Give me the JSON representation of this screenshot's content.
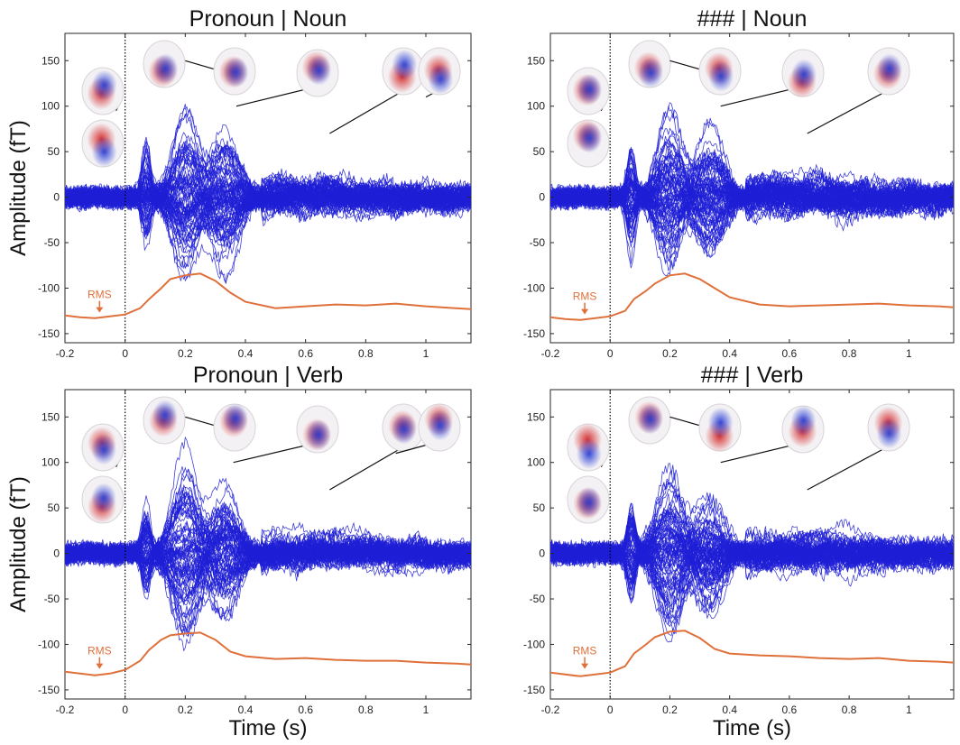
{
  "chart_data": [
    {
      "type": "line",
      "title": "Pronoun | Noun",
      "ylabel": "Amplitude (fT)",
      "xlabel": "",
      "xlim": [
        -0.2,
        1.15
      ],
      "ylim": [
        -160,
        180
      ],
      "xticks": [
        -0.2,
        0,
        0.2,
        0.4,
        0.6,
        0.8,
        1
      ],
      "yticks": [
        -150,
        -100,
        -50,
        0,
        50,
        100,
        150
      ],
      "xtick_labels": [
        "-0.2",
        "0",
        "0.2",
        "0.4",
        "0.6",
        "0.8",
        "1"
      ],
      "ytick_labels": [
        "-150",
        "-100",
        "-50",
        "0",
        "50",
        "100",
        "150"
      ],
      "onset_line_x": 0,
      "series": [
        {
          "name": "RMS",
          "color": "#e0703a",
          "x": [
            -0.2,
            -0.15,
            -0.1,
            -0.05,
            0,
            0.05,
            0.08,
            0.12,
            0.15,
            0.2,
            0.25,
            0.3,
            0.35,
            0.4,
            0.5,
            0.6,
            0.7,
            0.8,
            0.9,
            1.0,
            1.1,
            1.15
          ],
          "y": [
            -130,
            -132,
            -133,
            -131,
            -129,
            -122,
            -112,
            -100,
            -90,
            -86,
            -84,
            -92,
            -105,
            -115,
            -122,
            -120,
            -118,
            -119,
            -117,
            -120,
            -122,
            -123
          ]
        }
      ],
      "annotations": [
        {
          "text": "RMS",
          "x": -0.085,
          "y": -115
        }
      ],
      "topomap_times": [
        -0.03,
        -0.03,
        0.12,
        0.2,
        0.37,
        0.68,
        1.0
      ]
    },
    {
      "type": "line",
      "title": "### | Noun",
      "ylabel": "",
      "xlabel": "",
      "xlim": [
        -0.2,
        1.15
      ],
      "ylim": [
        -160,
        180
      ],
      "xticks": [
        -0.2,
        0,
        0.2,
        0.4,
        0.6,
        0.8,
        1
      ],
      "yticks": [
        -150,
        -100,
        -50,
        0,
        50,
        100,
        150
      ],
      "xtick_labels": [
        "-0.2",
        "0",
        "0.2",
        "0.4",
        "0.6",
        "0.8",
        "1"
      ],
      "ytick_labels": [
        "-150",
        "-100",
        "-50",
        "0",
        "50",
        "100",
        "150"
      ],
      "onset_line_x": 0,
      "series": [
        {
          "name": "RMS",
          "color": "#e0703a",
          "x": [
            -0.2,
            -0.15,
            -0.1,
            -0.05,
            0,
            0.05,
            0.08,
            0.12,
            0.15,
            0.2,
            0.25,
            0.3,
            0.35,
            0.4,
            0.5,
            0.6,
            0.7,
            0.8,
            0.9,
            1.0,
            1.1,
            1.15
          ],
          "y": [
            -132,
            -134,
            -135,
            -133,
            -131,
            -125,
            -112,
            -103,
            -95,
            -86,
            -84,
            -90,
            -100,
            -110,
            -118,
            -120,
            -119,
            -118,
            -117,
            -119,
            -120,
            -121
          ]
        }
      ],
      "annotations": [
        {
          "text": "RMS",
          "x": -0.085,
          "y": -117
        }
      ],
      "topomap_times": [
        -0.03,
        -0.03,
        0.12,
        0.2,
        0.37,
        0.66,
        0.94
      ]
    },
    {
      "type": "line",
      "title": "Pronoun | Verb",
      "ylabel": "Amplitude (fT)",
      "xlabel": "Time (s)",
      "xlim": [
        -0.2,
        1.15
      ],
      "ylim": [
        -160,
        180
      ],
      "xticks": [
        -0.2,
        0,
        0.2,
        0.4,
        0.6,
        0.8,
        1
      ],
      "yticks": [
        -150,
        -100,
        -50,
        0,
        50,
        100,
        150
      ],
      "xtick_labels": [
        "-0.2",
        "0",
        "0.2",
        "0.4",
        "0.6",
        "0.8",
        "1"
      ],
      "ytick_labels": [
        "-150",
        "-100",
        "-50",
        "0",
        "50",
        "100",
        "150"
      ],
      "onset_line_x": 0,
      "series": [
        {
          "name": "RMS",
          "color": "#e0703a",
          "x": [
            -0.2,
            -0.15,
            -0.1,
            -0.05,
            0,
            0.05,
            0.08,
            0.12,
            0.15,
            0.2,
            0.25,
            0.3,
            0.35,
            0.4,
            0.5,
            0.6,
            0.7,
            0.8,
            0.9,
            1.0,
            1.1,
            1.15
          ],
          "y": [
            -130,
            -132,
            -134,
            -132,
            -128,
            -118,
            -106,
            -95,
            -90,
            -88,
            -87,
            -95,
            -108,
            -113,
            -116,
            -115,
            -117,
            -118,
            -118,
            -120,
            -121,
            -122
          ]
        }
      ],
      "annotations": [
        {
          "text": "RMS",
          "x": -0.085,
          "y": -115
        }
      ],
      "topomap_times": [
        -0.03,
        -0.03,
        0.12,
        0.2,
        0.36,
        0.68,
        0.9
      ]
    },
    {
      "type": "line",
      "title": "### | Verb",
      "ylabel": "",
      "xlabel": "Time (s)",
      "xlim": [
        -0.2,
        1.15
      ],
      "ylim": [
        -160,
        180
      ],
      "xticks": [
        -0.2,
        0,
        0.2,
        0.4,
        0.6,
        0.8,
        1
      ],
      "yticks": [
        -150,
        -100,
        -50,
        0,
        50,
        100,
        150
      ],
      "xtick_labels": [
        "-0.2",
        "0",
        "0.2",
        "0.4",
        "0.6",
        "0.8",
        "1"
      ],
      "ytick_labels": [
        "-150",
        "-100",
        "-50",
        "0",
        "50",
        "100",
        "150"
      ],
      "onset_line_x": 0,
      "series": [
        {
          "name": "RMS",
          "color": "#e0703a",
          "x": [
            -0.2,
            -0.15,
            -0.1,
            -0.05,
            0,
            0.05,
            0.08,
            0.12,
            0.15,
            0.2,
            0.25,
            0.3,
            0.35,
            0.4,
            0.5,
            0.6,
            0.7,
            0.8,
            0.9,
            1.0,
            1.1,
            1.15
          ],
          "y": [
            -131,
            -133,
            -135,
            -133,
            -131,
            -124,
            -110,
            -100,
            -92,
            -86,
            -85,
            -93,
            -105,
            -110,
            -112,
            -113,
            -115,
            -116,
            -115,
            -118,
            -119,
            -120
          ]
        }
      ],
      "annotations": [
        {
          "text": "RMS",
          "x": -0.085,
          "y": -115
        }
      ],
      "topomap_times": [
        -0.03,
        -0.03,
        0.12,
        0.2,
        0.37,
        0.66,
        0.94
      ]
    }
  ],
  "colors": {
    "channels": "#1f1fd6",
    "rms": "#e0703a",
    "axes": "#262626",
    "onset_line": "#000000",
    "topo_positive": "#d42a2a",
    "topo_negative": "#2a3fd4"
  }
}
